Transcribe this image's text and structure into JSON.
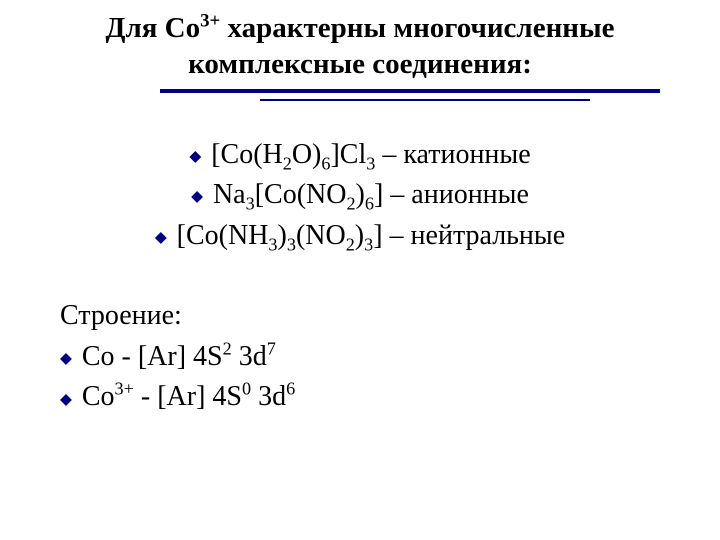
{
  "colors": {
    "accent": "#000080",
    "text": "#000000",
    "background": "#ffffff"
  },
  "typography": {
    "family": "Times New Roman",
    "title_size_pt": 29,
    "body_size_pt": 28,
    "title_weight": "bold",
    "body_weight": "normal"
  },
  "bullet_glyph": "◆",
  "title": {
    "line1_pre": "Для Co",
    "line1_sup": "3+",
    "line1_post": " характерны многочисленные",
    "line2": "комплексные соединения:"
  },
  "compounds": [
    {
      "segments": [
        {
          "t": "[Co(H"
        },
        {
          "t": "2",
          "sub": true
        },
        {
          "t": "O)"
        },
        {
          "t": "6",
          "sub": true
        },
        {
          "t": "]Cl"
        },
        {
          "t": "3",
          "sub": true
        },
        {
          "t": " – катионные"
        }
      ]
    },
    {
      "segments": [
        {
          "t": "Na"
        },
        {
          "t": "3",
          "sub": true
        },
        {
          "t": "[Co(NO"
        },
        {
          "t": "2",
          "sub": true
        },
        {
          "t": ")"
        },
        {
          "t": "6",
          "sub": true
        },
        {
          "t": "] – анионные"
        }
      ]
    },
    {
      "segments": [
        {
          "t": "[Co(NH"
        },
        {
          "t": "3",
          "sub": true
        },
        {
          "t": ")"
        },
        {
          "t": "3",
          "sub": true
        },
        {
          "t": "(NO"
        },
        {
          "t": "2",
          "sub": true
        },
        {
          "t": ")"
        },
        {
          "t": "3",
          "sub": true
        },
        {
          "t": "] – нейтральные"
        }
      ]
    }
  ],
  "structure": {
    "heading": "Строение:",
    "rows": [
      {
        "segments": [
          {
            "t": "Co - [Ar] 4S"
          },
          {
            "t": "2",
            "sup": true
          },
          {
            "t": " 3d"
          },
          {
            "t": "7",
            "sup": true
          }
        ]
      },
      {
        "segments": [
          {
            "t": "Co"
          },
          {
            "t": "3+",
            "sup": true
          },
          {
            "t": " - [Ar] 4S"
          },
          {
            "t": "0",
            "sup": true
          },
          {
            "t": " 3d"
          },
          {
            "t": "6",
            "sup": true
          }
        ]
      }
    ]
  }
}
